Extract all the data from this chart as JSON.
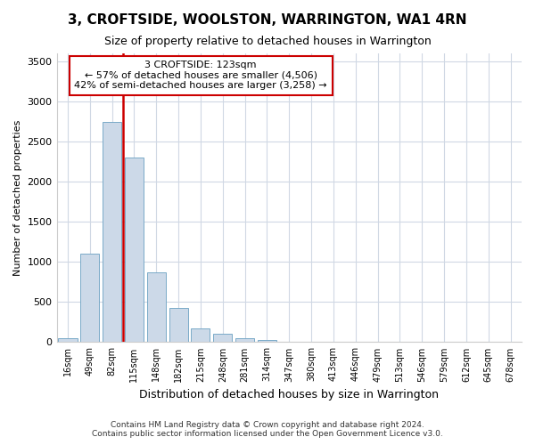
{
  "title": "3, CROFTSIDE, WOOLSTON, WARRINGTON, WA1 4RN",
  "subtitle": "Size of property relative to detached houses in Warrington",
  "xlabel": "Distribution of detached houses by size in Warrington",
  "ylabel": "Number of detached properties",
  "footnote1": "Contains HM Land Registry data © Crown copyright and database right 2024.",
  "footnote2": "Contains public sector information licensed under the Open Government Licence v3.0.",
  "bar_color": "#ccd9e8",
  "bar_edge_color": "#7aaac8",
  "categories": [
    "16sqm",
    "49sqm",
    "82sqm",
    "115sqm",
    "148sqm",
    "182sqm",
    "215sqm",
    "248sqm",
    "281sqm",
    "314sqm",
    "347sqm",
    "380sqm",
    "413sqm",
    "446sqm",
    "479sqm",
    "513sqm",
    "546sqm",
    "579sqm",
    "612sqm",
    "645sqm",
    "678sqm"
  ],
  "values": [
    50,
    1100,
    2750,
    2300,
    875,
    425,
    175,
    100,
    50,
    30,
    10,
    5,
    0,
    0,
    0,
    0,
    0,
    0,
    0,
    0,
    0
  ],
  "red_line_x": 2.5,
  "red_line_color": "#cc0000",
  "annotation_label": "3 CROFTSIDE: 123sqm",
  "annotation_line1": "← 57% of detached houses are smaller (4,506)",
  "annotation_line2": "42% of semi-detached houses are larger (3,258) →",
  "annotation_box_facecolor": "#ffffff",
  "annotation_box_edgecolor": "#cc0000",
  "ylim": [
    0,
    3600
  ],
  "yticks": [
    0,
    500,
    1000,
    1500,
    2000,
    2500,
    3000,
    3500
  ],
  "bg_color": "#ffffff",
  "grid_color": "#d0d8e4",
  "title_fontsize": 11,
  "subtitle_fontsize": 9,
  "ylabel_fontsize": 8,
  "xlabel_fontsize": 9,
  "footnote_fontsize": 6.5
}
